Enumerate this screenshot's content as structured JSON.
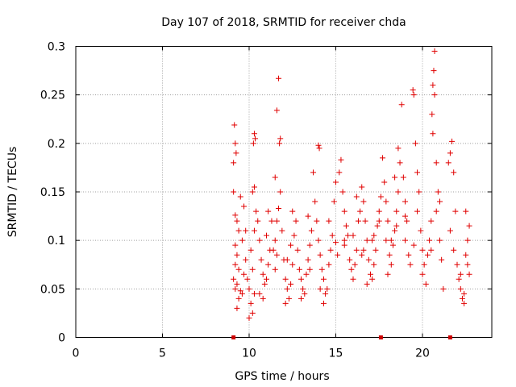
{
  "chart_data": {
    "type": "scatter",
    "title": "Day 107 of 2018, SRMTID for receiver chda",
    "xlabel": "GPS time / hours",
    "ylabel": "SRMTID / TECUs",
    "xlim": [
      0,
      24
    ],
    "ylim": [
      0,
      0.3
    ],
    "x_ticks": [
      0,
      5,
      10,
      15,
      20
    ],
    "x_tick_labels": [
      "0",
      "5",
      "10",
      "15",
      "20"
    ],
    "y_ticks": [
      0,
      0.05,
      0.1,
      0.15,
      0.2,
      0.25,
      0.3
    ],
    "y_tick_labels": [
      "0",
      "0.05",
      "0.1",
      "0.15",
      "0.2",
      "0.25",
      "0.3"
    ],
    "grid": true,
    "marker": "plus",
    "color": "#e00000",
    "data_gap_markers_x": [
      9.1,
      17.6,
      21.6
    ],
    "series": [
      {
        "name": "SRMTID",
        "points": [
          [
            9.1,
            0.18
          ],
          [
            9.15,
            0.219
          ],
          [
            9.2,
            0.2
          ],
          [
            9.25,
            0.19
          ],
          [
            9.1,
            0.15
          ],
          [
            9.2,
            0.126
          ],
          [
            9.3,
            0.12
          ],
          [
            9.4,
            0.11
          ],
          [
            9.2,
            0.095
          ],
          [
            9.3,
            0.085
          ],
          [
            9.2,
            0.075
          ],
          [
            9.4,
            0.07
          ],
          [
            9.1,
            0.06
          ],
          [
            9.3,
            0.055
          ],
          [
            9.2,
            0.05
          ],
          [
            9.5,
            0.048
          ],
          [
            9.4,
            0.04
          ],
          [
            9.3,
            0.03
          ],
          [
            9.6,
            0.045
          ],
          [
            9.7,
            0.065
          ],
          [
            9.8,
            0.08
          ],
          [
            9.6,
            0.1
          ],
          [
            9.8,
            0.11
          ],
          [
            9.7,
            0.135
          ],
          [
            9.5,
            0.145
          ],
          [
            9.9,
            0.06
          ],
          [
            10.0,
            0.05
          ],
          [
            10.1,
            0.035
          ],
          [
            10.2,
            0.025
          ],
          [
            10.0,
            0.02
          ],
          [
            10.3,
            0.045
          ],
          [
            10.2,
            0.07
          ],
          [
            10.1,
            0.09
          ],
          [
            10.3,
            0.11
          ],
          [
            10.4,
            0.13
          ],
          [
            10.2,
            0.15
          ],
          [
            10.3,
            0.155
          ],
          [
            10.25,
            0.2
          ],
          [
            10.3,
            0.21
          ],
          [
            10.35,
            0.205
          ],
          [
            10.5,
            0.12
          ],
          [
            10.6,
            0.1
          ],
          [
            10.7,
            0.08
          ],
          [
            10.8,
            0.065
          ],
          [
            10.9,
            0.055
          ],
          [
            10.6,
            0.045
          ],
          [
            10.8,
            0.04
          ],
          [
            11.0,
            0.06
          ],
          [
            11.1,
            0.075
          ],
          [
            11.2,
            0.09
          ],
          [
            11.0,
            0.105
          ],
          [
            11.3,
            0.12
          ],
          [
            11.1,
            0.13
          ],
          [
            11.4,
            0.09
          ],
          [
            11.5,
            0.07
          ],
          [
            11.6,
            0.085
          ],
          [
            11.5,
            0.1
          ],
          [
            11.6,
            0.12
          ],
          [
            11.7,
            0.133
          ],
          [
            11.5,
            0.165
          ],
          [
            11.6,
            0.234
          ],
          [
            11.7,
            0.267
          ],
          [
            11.8,
            0.205
          ],
          [
            11.75,
            0.2
          ],
          [
            11.8,
            0.15
          ],
          [
            11.9,
            0.11
          ],
          [
            12.0,
            0.08
          ],
          [
            12.1,
            0.06
          ],
          [
            12.2,
            0.05
          ],
          [
            12.3,
            0.04
          ],
          [
            12.1,
            0.035
          ],
          [
            12.4,
            0.055
          ],
          [
            12.5,
            0.075
          ],
          [
            12.4,
            0.095
          ],
          [
            12.6,
            0.105
          ],
          [
            12.7,
            0.12
          ],
          [
            12.5,
            0.13
          ],
          [
            12.8,
            0.09
          ],
          [
            12.9,
            0.07
          ],
          [
            13.0,
            0.06
          ],
          [
            13.1,
            0.05
          ],
          [
            13.2,
            0.045
          ],
          [
            13.0,
            0.04
          ],
          [
            13.3,
            0.065
          ],
          [
            13.4,
            0.08
          ],
          [
            13.5,
            0.095
          ],
          [
            13.6,
            0.11
          ],
          [
            13.4,
            0.125
          ],
          [
            13.7,
            0.17
          ],
          [
            13.8,
            0.14
          ],
          [
            13.9,
            0.12
          ],
          [
            14.0,
            0.198
          ],
          [
            14.05,
            0.195
          ],
          [
            14.0,
            0.1
          ],
          [
            14.1,
            0.085
          ],
          [
            14.2,
            0.07
          ],
          [
            14.3,
            0.06
          ],
          [
            14.1,
            0.05
          ],
          [
            14.4,
            0.045
          ],
          [
            14.5,
            0.05
          ],
          [
            14.3,
            0.035
          ],
          [
            14.6,
            0.075
          ],
          [
            14.7,
            0.09
          ],
          [
            14.8,
            0.105
          ],
          [
            14.6,
            0.12
          ],
          [
            14.9,
            0.14
          ],
          [
            15.0,
            0.16
          ],
          [
            15.0,
            0.098
          ],
          [
            15.1,
            0.085
          ],
          [
            15.2,
            0.17
          ],
          [
            15.3,
            0.183
          ],
          [
            15.4,
            0.15
          ],
          [
            15.5,
            0.13
          ],
          [
            15.6,
            0.115
          ],
          [
            15.7,
            0.105
          ],
          [
            15.5,
            0.095
          ],
          [
            15.8,
            0.08
          ],
          [
            15.9,
            0.07
          ],
          [
            16.0,
            0.06
          ],
          [
            16.1,
            0.075
          ],
          [
            16.2,
            0.09
          ],
          [
            16.0,
            0.105
          ],
          [
            16.3,
            0.12
          ],
          [
            16.4,
            0.13
          ],
          [
            16.2,
            0.145
          ],
          [
            16.5,
            0.155
          ],
          [
            16.6,
            0.14
          ],
          [
            16.7,
            0.12
          ],
          [
            16.8,
            0.1
          ],
          [
            16.6,
            0.09
          ],
          [
            16.9,
            0.08
          ],
          [
            17.0,
            0.065
          ],
          [
            16.8,
            0.055
          ],
          [
            17.1,
            0.06
          ],
          [
            17.2,
            0.075
          ],
          [
            17.3,
            0.09
          ],
          [
            17.1,
            0.1
          ],
          [
            17.4,
            0.115
          ],
          [
            17.5,
            0.13
          ],
          [
            17.6,
            0.145
          ],
          [
            17.7,
            0.185
          ],
          [
            17.8,
            0.16
          ],
          [
            17.9,
            0.14
          ],
          [
            18.0,
            0.12
          ],
          [
            17.9,
            0.1
          ],
          [
            18.1,
            0.085
          ],
          [
            18.2,
            0.075
          ],
          [
            18.0,
            0.065
          ],
          [
            18.3,
            0.095
          ],
          [
            18.4,
            0.11
          ],
          [
            18.5,
            0.13
          ],
          [
            18.6,
            0.15
          ],
          [
            18.4,
            0.165
          ],
          [
            18.7,
            0.18
          ],
          [
            18.8,
            0.24
          ],
          [
            18.6,
            0.195
          ],
          [
            18.9,
            0.165
          ],
          [
            19.0,
            0.14
          ],
          [
            19.1,
            0.12
          ],
          [
            19.0,
            0.1
          ],
          [
            19.2,
            0.085
          ],
          [
            19.3,
            0.075
          ],
          [
            19.5,
            0.25
          ],
          [
            19.45,
            0.255
          ],
          [
            19.6,
            0.2
          ],
          [
            19.7,
            0.17
          ],
          [
            19.8,
            0.15
          ],
          [
            19.7,
            0.13
          ],
          [
            19.9,
            0.11
          ],
          [
            20.0,
            0.09
          ],
          [
            20.1,
            0.075
          ],
          [
            20.0,
            0.065
          ],
          [
            20.2,
            0.055
          ],
          [
            20.3,
            0.085
          ],
          [
            20.4,
            0.1
          ],
          [
            20.5,
            0.12
          ],
          [
            20.6,
            0.21
          ],
          [
            20.55,
            0.23
          ],
          [
            20.6,
            0.26
          ],
          [
            20.65,
            0.275
          ],
          [
            20.7,
            0.295
          ],
          [
            20.7,
            0.25
          ],
          [
            20.8,
            0.18
          ],
          [
            20.9,
            0.15
          ],
          [
            20.8,
            0.13
          ],
          [
            21.0,
            0.1
          ],
          [
            21.1,
            0.08
          ],
          [
            21.2,
            0.05
          ],
          [
            21.5,
            0.18
          ],
          [
            21.6,
            0.19
          ],
          [
            21.7,
            0.202
          ],
          [
            21.8,
            0.17
          ],
          [
            21.9,
            0.13
          ],
          [
            21.6,
            0.11
          ],
          [
            21.8,
            0.09
          ],
          [
            22.0,
            0.075
          ],
          [
            22.1,
            0.06
          ],
          [
            22.2,
            0.05
          ],
          [
            22.3,
            0.04
          ],
          [
            22.4,
            0.045
          ],
          [
            22.2,
            0.065
          ],
          [
            22.5,
            0.085
          ],
          [
            22.6,
            0.1
          ],
          [
            22.7,
            0.115
          ],
          [
            22.5,
            0.13
          ],
          [
            22.6,
            0.075
          ],
          [
            22.7,
            0.065
          ],
          [
            22.4,
            0.035
          ],
          [
            12.2,
            0.08
          ],
          [
            13.5,
            0.07
          ],
          [
            15.5,
            0.1
          ],
          [
            16.5,
            0.085
          ],
          [
            17.5,
            0.12
          ],
          [
            18.5,
            0.115
          ],
          [
            19.5,
            0.095
          ],
          [
            20.5,
            0.09
          ],
          [
            21.0,
            0.14
          ],
          [
            19.0,
            0.125
          ],
          [
            18.2,
            0.1
          ],
          [
            17.2,
            0.105
          ]
        ]
      }
    ]
  }
}
